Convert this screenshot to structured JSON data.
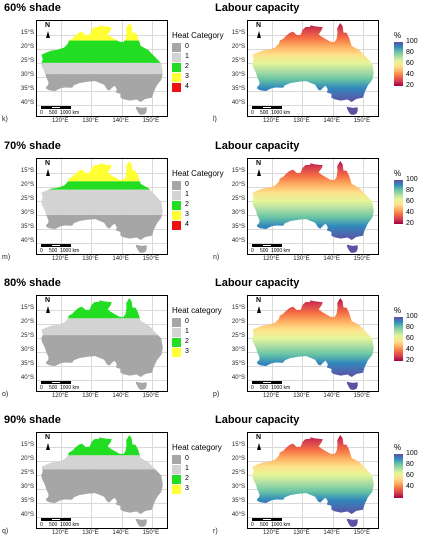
{
  "colors": {
    "cat0": "#a6a6a6",
    "cat1": "#d3d3d3",
    "cat2": "#22dd22",
    "cat3": "#ffff33",
    "cat4": "#ee1111",
    "labour_gradient": [
      "#5e4fa2",
      "#3288bd",
      "#66c2a5",
      "#abdda4",
      "#e6f598",
      "#fee08b",
      "#fdae61",
      "#f46d43",
      "#d53e4f",
      "#9e0142"
    ]
  },
  "axes": {
    "lat_ticks": [
      "15°S",
      "20°S",
      "25°S",
      "30°S",
      "35°S",
      "40°S"
    ],
    "lon_ticks": [
      "120°E",
      "130°E",
      "140°E",
      "150°E"
    ],
    "north": "N",
    "scale_labels": [
      "0",
      "500",
      "1000 km"
    ]
  },
  "chart_data": [
    {
      "type": "heatmap",
      "panel_label": "k)",
      "title": "60% shade",
      "legend_title": "Heat Category",
      "legend": [
        "0",
        "1",
        "2",
        "3",
        "4"
      ],
      "xlim": [
        112,
        155
      ],
      "ylim": [
        -44,
        -10
      ],
      "category_lat_bands": [
        {
          "category": "3",
          "lat": [
            -10,
            -17
          ]
        },
        {
          "category": "2",
          "lat": [
            -17,
            -25
          ]
        },
        {
          "category": "1",
          "lat": [
            -25,
            -29
          ]
        },
        {
          "category": "0",
          "lat": [
            -29,
            -44
          ]
        }
      ]
    },
    {
      "type": "heatmap",
      "panel_label": "l)",
      "title": "Labour capacity",
      "legend_title": "%",
      "legend": [
        "100",
        "80",
        "60",
        "40",
        "20"
      ],
      "xlim": [
        112,
        155
      ],
      "ylim": [
        -44,
        -10
      ]
    },
    {
      "type": "heatmap",
      "panel_label": "m)",
      "title": "70% shade",
      "legend_title": "Heat Category",
      "legend": [
        "0",
        "1",
        "2",
        "3",
        "4"
      ],
      "xlim": [
        112,
        155
      ],
      "ylim": [
        -44,
        -10
      ],
      "category_lat_bands": [
        {
          "category": "3",
          "lat": [
            -10,
            -18
          ]
        },
        {
          "category": "2",
          "lat": [
            -18,
            -21
          ]
        },
        {
          "category": "1",
          "lat": [
            -21,
            -30
          ]
        },
        {
          "category": "0",
          "lat": [
            -30,
            -44
          ]
        }
      ]
    },
    {
      "type": "heatmap",
      "panel_label": "n)",
      "title": "Labour capacity",
      "legend_title": "%",
      "legend": [
        "100",
        "80",
        "60",
        "40",
        "20"
      ],
      "xlim": [
        112,
        155
      ],
      "ylim": [
        -44,
        -10
      ]
    },
    {
      "type": "heatmap",
      "panel_label": "o)",
      "title": "80% shade",
      "legend_title": "Heat category",
      "legend": [
        "0",
        "1",
        "2",
        "3"
      ],
      "xlim": [
        112,
        155
      ],
      "ylim": [
        -44,
        -10
      ],
      "category_lat_bands": [
        {
          "category": "2",
          "lat": [
            -10,
            -18
          ]
        },
        {
          "category": "1",
          "lat": [
            -18,
            -24
          ]
        },
        {
          "category": "0",
          "lat": [
            -24,
            -44
          ]
        }
      ]
    },
    {
      "type": "heatmap",
      "panel_label": "p)",
      "title": "Labour capacity",
      "legend_title": "%",
      "legend": [
        "100",
        "80",
        "60",
        "40",
        "20"
      ],
      "xlim": [
        112,
        155
      ],
      "ylim": [
        -44,
        -10
      ]
    },
    {
      "type": "heatmap",
      "panel_label": "q)",
      "title": "90% shade",
      "legend_title": "Heat category",
      "legend": [
        "0",
        "1",
        "2",
        "3"
      ],
      "xlim": [
        112,
        155
      ],
      "ylim": [
        -44,
        -10
      ],
      "category_lat_bands": [
        {
          "category": "2",
          "lat": [
            -10,
            -18
          ]
        },
        {
          "category": "1",
          "lat": [
            -18,
            -23
          ]
        },
        {
          "category": "0",
          "lat": [
            -23,
            -44
          ]
        }
      ]
    },
    {
      "type": "heatmap",
      "panel_label": "r)",
      "title": "Labour capacity",
      "legend_title": "%",
      "legend": [
        "100",
        "80",
        "60",
        "40"
      ],
      "xlim": [
        112,
        155
      ],
      "ylim": [
        -44,
        -10
      ]
    }
  ]
}
